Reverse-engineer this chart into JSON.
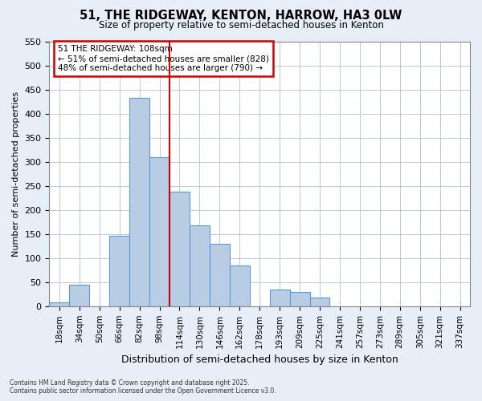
{
  "title": "51, THE RIDGEWAY, KENTON, HARROW, HA3 0LW",
  "subtitle": "Size of property relative to semi-detached houses in Kenton",
  "xlabel": "Distribution of semi-detached houses by size in Kenton",
  "ylabel": "Number of semi-detached properties",
  "footer_line1": "Contains HM Land Registry data © Crown copyright and database right 2025.",
  "footer_line2": "Contains public sector information licensed under the Open Government Licence v3.0.",
  "annotation_line1": "51 THE RIDGEWAY: 108sqm",
  "annotation_line2": "← 51% of semi-detached houses are smaller (828)",
  "annotation_line3": "48% of semi-detached houses are larger (790) →",
  "categories": [
    "18sqm",
    "34sqm",
    "50sqm",
    "66sqm",
    "82sqm",
    "98sqm",
    "114sqm",
    "130sqm",
    "146sqm",
    "162sqm",
    "178sqm",
    "193sqm",
    "209sqm",
    "225sqm",
    "241sqm",
    "257sqm",
    "273sqm",
    "289sqm",
    "305sqm",
    "321sqm",
    "337sqm"
  ],
  "values": [
    8,
    45,
    0,
    147,
    432,
    310,
    237,
    168,
    130,
    85,
    0,
    35,
    30,
    18,
    0,
    0,
    0,
    0,
    0,
    0,
    0
  ],
  "bar_color": "#b8cce4",
  "bar_edge_color": "#5b9bd5",
  "vline_color": "#cc0000",
  "annotation_box_color": "#cc0000",
  "plot_bg_color": "#ffffff",
  "fig_bg_color": "#e8eef8",
  "grid_color": "#c0c8d8",
  "ylim": [
    0,
    550
  ],
  "yticks": [
    0,
    50,
    100,
    150,
    200,
    250,
    300,
    350,
    400,
    450,
    500,
    550
  ],
  "vline_x": 5.5
}
